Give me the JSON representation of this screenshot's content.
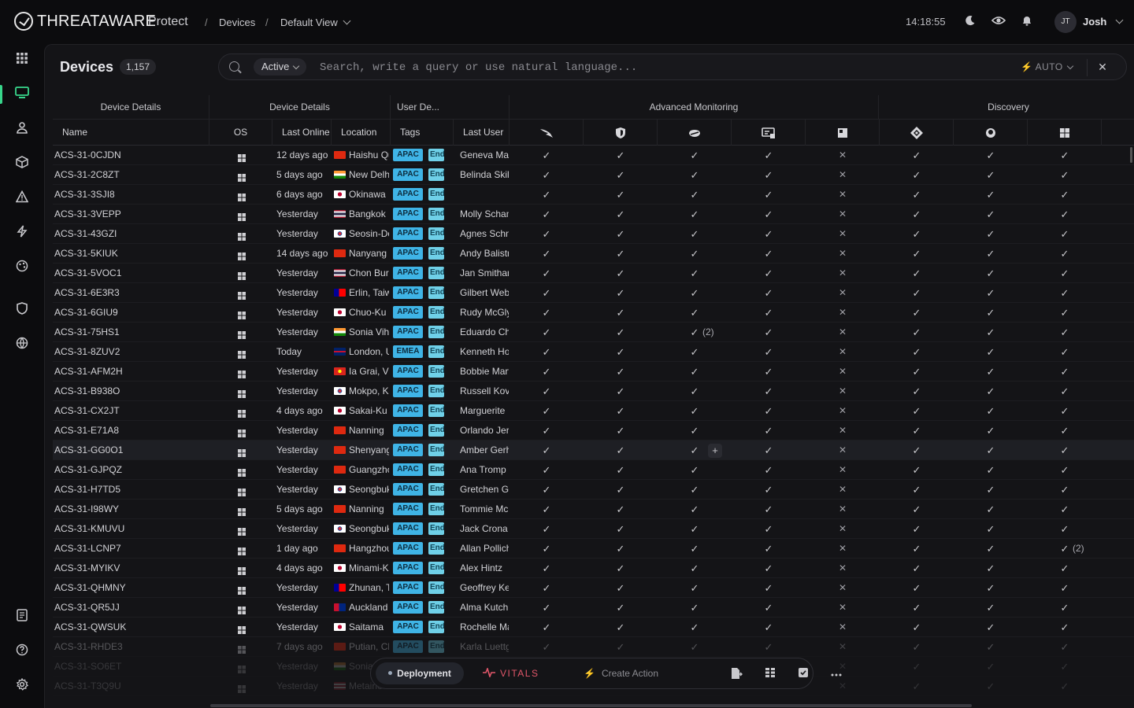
{
  "app": {
    "brand": "THREATAWARE",
    "product": "Protect",
    "breadcrumb": [
      "Devices",
      "Default View"
    ],
    "clock": "14:18:55",
    "user": {
      "initials": "JT",
      "name": "Josh"
    }
  },
  "sidebar": {
    "items": [
      "apps-icon",
      "devices-icon",
      "users-icon",
      "assets-icon",
      "alerts-icon",
      "actions-icon",
      "integrations-icon",
      "security-icon",
      "network-icon",
      "reports-icon",
      "help-icon",
      "settings-icon"
    ]
  },
  "panel": {
    "title": "Devices",
    "count": "1,157",
    "filter": "Active",
    "search_placeholder": "Search, write a query or use natural language...",
    "mode": "AUTO"
  },
  "column_groups": [
    {
      "label": "Device Details"
    },
    {
      "label": "Device Details"
    },
    {
      "label": "User De..."
    },
    {
      "label": "Advanced Monitoring"
    },
    {
      "label": "Discovery"
    }
  ],
  "columns": {
    "name": "Name",
    "os": "OS",
    "last_online": "Last Online",
    "location": "Location",
    "tags": "Tags",
    "last_user": "Last User",
    "tool_icons": [
      "crowdstrike-icon",
      "defender-icon",
      "sentinelone-icon",
      "rmm-icon",
      "mdm-icon",
      "intune-icon",
      "jamf-icon",
      "windows-icon"
    ]
  },
  "colors": {
    "accent": "#38d68b",
    "tag_region": "#3fb4e6",
    "tag_env": "#6fd0e8",
    "vitals": "#e2576a"
  },
  "rows": [
    {
      "name": "ACS-31-0CJDN",
      "last_online": "12 days ago",
      "flag": "cn",
      "location": "Haishu Qu",
      "region": "APAC",
      "env": "Endpoint",
      "user": "Geneva Maggio",
      "checks": [
        "c",
        "c",
        "c",
        "c",
        "x",
        "c",
        "c",
        "c"
      ]
    },
    {
      "name": "ACS-31-2C8ZT",
      "last_online": "5 days ago",
      "flag": "in",
      "location": "New Delhi",
      "region": "APAC",
      "env": "Endpoint",
      "user": "Belinda Skiles",
      "checks": [
        "c",
        "c",
        "c",
        "c",
        "x",
        "c",
        "c",
        "c"
      ]
    },
    {
      "name": "ACS-31-3SJI8",
      "last_online": "6 days ago",
      "flag": "jp",
      "location": "Okinawa",
      "region": "APAC",
      "env": "Endpoint",
      "user": "",
      "checks": [
        "c",
        "c",
        "c",
        "c",
        "x",
        "c",
        "c",
        "c"
      ]
    },
    {
      "name": "ACS-31-3VEPP",
      "last_online": "Yesterday",
      "flag": "th",
      "location": "Bangkok",
      "region": "APAC",
      "env": "Endpoint",
      "user": "Molly Schamberger",
      "checks": [
        "c",
        "c",
        "c",
        "c",
        "x",
        "c",
        "c",
        "c"
      ]
    },
    {
      "name": "ACS-31-43GZI",
      "last_online": "Yesterday",
      "flag": "kr",
      "location": "Seosin-Dong",
      "region": "APAC",
      "env": "Endpoint",
      "user": "Agnes Schneider",
      "checks": [
        "c",
        "c",
        "c",
        "c",
        "x",
        "c",
        "c",
        "c"
      ]
    },
    {
      "name": "ACS-31-5KIUK",
      "last_online": "14 days ago",
      "flag": "cn",
      "location": "Nanyang",
      "region": "APAC",
      "env": "Endpoint",
      "user": "Andy Balistreri",
      "checks": [
        "c",
        "c",
        "c",
        "c",
        "x",
        "c",
        "c",
        "c"
      ]
    },
    {
      "name": "ACS-31-5VOC1",
      "last_online": "Yesterday",
      "flag": "th",
      "location": "Chon Buri",
      "region": "APAC",
      "env": "Endpoint",
      "user": "Jan Smitham",
      "checks": [
        "c",
        "c",
        "c",
        "c",
        "x",
        "c",
        "c",
        "c"
      ]
    },
    {
      "name": "ACS-31-6E3R3",
      "last_online": "Yesterday",
      "flag": "tw",
      "location": "Erlin, Taiwan",
      "region": "APAC",
      "env": "Endpoint",
      "user": "Gilbert Weber",
      "checks": [
        "c",
        "c",
        "c",
        "c",
        "x",
        "c",
        "c",
        "c"
      ]
    },
    {
      "name": "ACS-31-6GIU9",
      "last_online": "Yesterday",
      "flag": "jp",
      "location": "Chuo-Ku",
      "region": "APAC",
      "env": "Endpoint",
      "user": "Rudy McGlynn",
      "checks": [
        "c",
        "c",
        "c",
        "c",
        "x",
        "c",
        "c",
        "c"
      ]
    },
    {
      "name": "ACS-31-75HS1",
      "last_online": "Yesterday",
      "flag": "in",
      "location": "Sonia Vihar",
      "region": "APAC",
      "env": "Endpoint",
      "user": "Eduardo Champlin",
      "checks": [
        "c",
        "c",
        "c2",
        "c",
        "x",
        "c",
        "c",
        "c"
      ]
    },
    {
      "name": "ACS-31-8ZUV2",
      "last_online": "Today",
      "flag": "gb",
      "location": "London, UK",
      "region": "EMEA",
      "env": "Endpoint",
      "user": "Kenneth Howell",
      "checks": [
        "c",
        "c",
        "c",
        "c",
        "x",
        "c",
        "c",
        "c"
      ]
    },
    {
      "name": "ACS-31-AFM2H",
      "last_online": "Yesterday",
      "flag": "vn",
      "location": "Ia Grai, Vietnam",
      "region": "APAC",
      "env": "Endpoint",
      "user": "Bobbie Marvin",
      "checks": [
        "c",
        "c",
        "c",
        "c",
        "x",
        "c",
        "c",
        "c"
      ]
    },
    {
      "name": "ACS-31-B938O",
      "last_online": "Yesterday",
      "flag": "kr",
      "location": "Mokpo, Korea",
      "region": "APAC",
      "env": "Endpoint",
      "user": "Russell Kovacek",
      "checks": [
        "c",
        "c",
        "c",
        "c",
        "x",
        "c",
        "c",
        "c"
      ]
    },
    {
      "name": "ACS-31-CX2JT",
      "last_online": "4 days ago",
      "flag": "jp",
      "location": "Sakai-Ku",
      "region": "APAC",
      "env": "Endpoint",
      "user": "Marguerite",
      "checks": [
        "c",
        "c",
        "c",
        "c",
        "x",
        "c",
        "c",
        "c"
      ]
    },
    {
      "name": "ACS-31-E71A8",
      "last_online": "Yesterday",
      "flag": "cn",
      "location": "Nanning",
      "region": "APAC",
      "env": "Endpoint",
      "user": "Orlando Jerde",
      "checks": [
        "c",
        "c",
        "c",
        "c",
        "x",
        "c",
        "c",
        "c"
      ]
    },
    {
      "name": "ACS-31-GG0O1",
      "last_online": "Yesterday",
      "flag": "cn",
      "location": "Shenyang",
      "region": "APAC",
      "env": "Endpoint",
      "user": "Amber Gerhold",
      "checks": [
        "c",
        "c",
        "cp",
        "c",
        "x",
        "c",
        "c",
        "c"
      ],
      "hover": true
    },
    {
      "name": "ACS-31-GJPQZ",
      "last_online": "Yesterday",
      "flag": "cn",
      "location": "Guangzhou",
      "region": "APAC",
      "env": "Endpoint",
      "user": "Ana Tromp",
      "checks": [
        "c",
        "c",
        "c",
        "c",
        "x",
        "c",
        "c",
        "c"
      ]
    },
    {
      "name": "ACS-31-H7TD5",
      "last_online": "Yesterday",
      "flag": "kr",
      "location": "Seongbuk",
      "region": "APAC",
      "env": "Endpoint",
      "user": "Gretchen Grant",
      "checks": [
        "c",
        "c",
        "c",
        "c",
        "x",
        "c",
        "c",
        "c"
      ]
    },
    {
      "name": "ACS-31-I98WY",
      "last_online": "5 days ago",
      "flag": "cn",
      "location": "Nanning",
      "region": "APAC",
      "env": "Endpoint",
      "user": "Tommie McClure",
      "checks": [
        "c",
        "c",
        "c",
        "c",
        "x",
        "c",
        "c",
        "c"
      ]
    },
    {
      "name": "ACS-31-KMUVU",
      "last_online": "Yesterday",
      "flag": "kr",
      "location": "Seongbuk",
      "region": "APAC",
      "env": "Endpoint",
      "user": "Jack Crona",
      "checks": [
        "c",
        "c",
        "c",
        "c",
        "x",
        "c",
        "c",
        "c"
      ]
    },
    {
      "name": "ACS-31-LCNP7",
      "last_online": "1 day ago",
      "flag": "cn",
      "location": "Hangzhou",
      "region": "APAC",
      "env": "Endpoint",
      "user": "Allan Pollich",
      "checks": [
        "c",
        "c",
        "c",
        "c",
        "x",
        "c",
        "c",
        "c2"
      ]
    },
    {
      "name": "ACS-31-MYIKV",
      "last_online": "4 days ago",
      "flag": "jp",
      "location": "Minami-Ku",
      "region": "APAC",
      "env": "Endpoint",
      "user": "Alex Hintz",
      "checks": [
        "c",
        "c",
        "c",
        "c",
        "x",
        "c",
        "c",
        "c"
      ]
    },
    {
      "name": "ACS-31-QHMNY",
      "last_online": "Yesterday",
      "flag": "tw",
      "location": "Zhunan, Taiwan",
      "region": "APAC",
      "env": "Endpoint",
      "user": "Geoffrey Kemmer",
      "checks": [
        "c",
        "c",
        "c",
        "c",
        "x",
        "c",
        "c",
        "c"
      ]
    },
    {
      "name": "ACS-31-QR5JJ",
      "last_online": "Yesterday",
      "flag": "nz",
      "location": "Auckland",
      "region": "APAC",
      "env": "Endpoint",
      "user": "Alma Kutch",
      "checks": [
        "c",
        "c",
        "c",
        "c",
        "x",
        "c",
        "c",
        "c"
      ]
    },
    {
      "name": "ACS-31-QWSUK",
      "last_online": "Yesterday",
      "flag": "jp",
      "location": "Saitama",
      "region": "APAC",
      "env": "Endpoint",
      "user": "Rochelle Mann",
      "checks": [
        "c",
        "c",
        "c",
        "c",
        "x",
        "c",
        "c",
        "c"
      ]
    },
    {
      "name": "ACS-31-RHDE3",
      "last_online": "7 days ago",
      "flag": "cn",
      "location": "Putian, China",
      "region": "APAC",
      "env": "Endpoint",
      "user": "Karla Luettgen",
      "checks": [
        "c",
        "c",
        "c",
        "c",
        "x",
        "c",
        "c",
        "c"
      ],
      "fade": 1
    },
    {
      "name": "ACS-31-SO6ET",
      "last_online": "Yesterday",
      "flag": "in",
      "location": "Sonia Vihar",
      "region": "",
      "env": "",
      "user": "",
      "checks": [
        "",
        "",
        "",
        "",
        "x",
        "c",
        "c",
        "c"
      ],
      "fade": 2
    },
    {
      "name": "ACS-31-T3Q9U",
      "last_online": "Yesterday",
      "flag": "us",
      "location": "Metairie",
      "region": "",
      "env": "",
      "user": "",
      "checks": [
        "",
        "",
        "",
        "",
        "x",
        "c",
        "c",
        "c"
      ],
      "fade": 2
    }
  ],
  "toolbar": {
    "deployment": "Deployment",
    "vitals": "VITALS",
    "create_action": "Create Action"
  }
}
